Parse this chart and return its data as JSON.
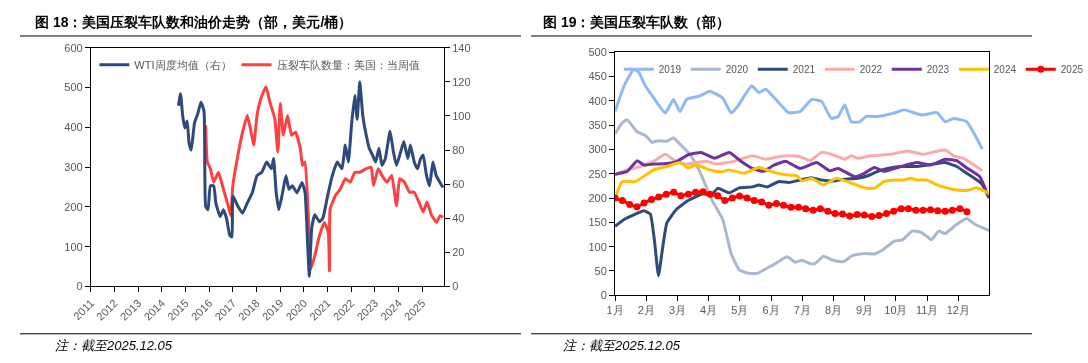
{
  "chart_data": [
    {
      "type": "line",
      "title": "图 18：美国压裂车队数和油价走势（部，美元/桶）",
      "annotations": [
        "注：截至2025.12.05"
      ],
      "xlim": [
        2011,
        2025.92
      ],
      "xticks": [
        2011,
        2012,
        2013,
        2014,
        2015,
        2016,
        2017,
        2018,
        2019,
        2020,
        2021,
        2022,
        2023,
        2024,
        2025
      ],
      "ylim": [
        0,
        600
      ],
      "yticks": [
        0,
        100,
        200,
        300,
        400,
        500,
        600
      ],
      "y2lim": [
        0,
        140
      ],
      "y2ticks": [
        0,
        20,
        40,
        60,
        80,
        100,
        120,
        140
      ],
      "legend": "top",
      "series": [
        {
          "name": "WTI周度均值（右）",
          "color": "#2e4a7a",
          "axis": "y2",
          "x": [
            2014.7,
            2014.79,
            2014.88,
            2014.97,
            2015.07,
            2015.15,
            2015.24,
            2015.38,
            2015.51,
            2015.65,
            2015.78,
            2015.85,
            2015.95,
            2016.05,
            2016.19,
            2016.28,
            2016.46,
            2016.6,
            2016.73,
            2016.87,
            2016.96,
            2017.0,
            2017.21,
            2017.41,
            2017.61,
            2017.82,
            2018.02,
            2018.22,
            2018.43,
            2018.63,
            2018.72,
            2018.83,
            2018.94,
            2019.1,
            2019.24,
            2019.37,
            2019.51,
            2019.71,
            2019.92,
            2020.05,
            2020.16,
            2020.23,
            2020.33,
            2020.46,
            2020.66,
            2020.8,
            2021.0,
            2021.2,
            2021.41,
            2021.61,
            2021.75,
            2021.88,
            2022.02,
            2022.15,
            2022.25,
            2022.36,
            2022.49,
            2022.63,
            2022.76,
            2022.9,
            2023.03,
            2023.17,
            2023.3,
            2023.44,
            2023.64,
            2023.78,
            2023.91,
            2024.05,
            2024.22,
            2024.39,
            2024.5,
            2024.66,
            2024.8,
            2024.93,
            2025.04,
            2025.18,
            2025.31,
            2025.45,
            2025.59,
            2025.75,
            2025.88
          ],
          "values": [
            106,
            113,
            100,
            93,
            97,
            84,
            80,
            96,
            101,
            108,
            103,
            47,
            45,
            59,
            59,
            49,
            41,
            45,
            40,
            30,
            29,
            53,
            47,
            43,
            49,
            55,
            65,
            67,
            73,
            69,
            75,
            55,
            45,
            55,
            65,
            57,
            59,
            55,
            61,
            55,
            24,
            6,
            34,
            42,
            38,
            40,
            53,
            65,
            73,
            69,
            83,
            73,
            96,
            112,
            98,
            120,
            100,
            89,
            81,
            77,
            73,
            81,
            71,
            75,
            91,
            79,
            71,
            77,
            85,
            75,
            83,
            73,
            69,
            75,
            77,
            65,
            59,
            73,
            65,
            61,
            58
          ]
        },
        {
          "name": "压裂车队数量：美国：当周值",
          "color": "#ff4040",
          "x": [
            2015.85,
            2015.92,
            2016.05,
            2016.19,
            2016.39,
            2016.6,
            2016.8,
            2016.91,
            2017.0,
            2017.21,
            2017.41,
            2017.61,
            2017.74,
            2017.88,
            2018.02,
            2018.18,
            2018.4,
            2018.56,
            2018.77,
            2018.9,
            2019.0,
            2019.13,
            2019.31,
            2019.48,
            2019.65,
            2019.85,
            2019.94,
            2020.05,
            2020.2,
            2020.29,
            2020.46,
            2020.66,
            2020.86,
            2021.03,
            2021.08,
            2021.11,
            2021.34,
            2021.54,
            2021.75,
            2021.96,
            2022.15,
            2022.36,
            2022.63,
            2022.84,
            2022.94,
            2023.14,
            2023.3,
            2023.51,
            2023.71,
            2023.91,
            2024.05,
            2024.25,
            2024.46,
            2024.66,
            2024.86,
            2025.04,
            2025.2,
            2025.4,
            2025.61,
            2025.75,
            2025.88
          ],
          "values": [
            405,
            313,
            296,
            262,
            287,
            245,
            203,
            178,
            254,
            329,
            388,
            430,
            397,
            355,
            430,
            472,
            502,
            464,
            422,
            338,
            460,
            380,
            430,
            380,
            388,
            346,
            304,
            313,
            161,
            44,
            77,
            128,
            161,
            136,
            39,
            195,
            229,
            245,
            271,
            262,
            287,
            287,
            296,
            300,
            254,
            296,
            279,
            262,
            279,
            203,
            271,
            262,
            237,
            237,
            212,
            187,
            212,
            178,
            161,
            178,
            174
          ]
        }
      ]
    },
    {
      "type": "line",
      "title": "图 19：美国压裂车队数（部）",
      "annotations": [
        "注：截至2025.12.05"
      ],
      "xlim": [
        1,
        13
      ],
      "xticks": [
        {
          "value": 1,
          "label": "1月"
        },
        {
          "value": 2,
          "label": "2月"
        },
        {
          "value": 3,
          "label": "3月"
        },
        {
          "value": 4,
          "label": "4月"
        },
        {
          "value": 5,
          "label": "5月"
        },
        {
          "value": 6,
          "label": "6月"
        },
        {
          "value": 7,
          "label": "7月"
        },
        {
          "value": 8,
          "label": "8月"
        },
        {
          "value": 9,
          "label": "9月"
        },
        {
          "value": 10,
          "label": "10月"
        },
        {
          "value": 11,
          "label": "11月"
        },
        {
          "value": 12,
          "label": "12月"
        }
      ],
      "ylim": [
        0,
        500
      ],
      "yticks": [
        0,
        50,
        100,
        150,
        200,
        250,
        300,
        350,
        400,
        450,
        500
      ],
      "legend": "top",
      "series": [
        {
          "name": "2019",
          "color": "#8fb9f5",
          "x": [
            1.0,
            1.29,
            1.6,
            1.76,
            1.97,
            2.24,
            2.61,
            2.87,
            3.08,
            3.29,
            3.71,
            4.03,
            4.45,
            4.72,
            4.93,
            5.38,
            5.61,
            5.83,
            6.25,
            6.56,
            6.93,
            7.3,
            7.62,
            7.93,
            8.15,
            8.36,
            8.57,
            8.84,
            9.05,
            9.42,
            9.94,
            10.26,
            10.47,
            10.84,
            11.32,
            11.58,
            11.85,
            12.27,
            12.77
          ],
          "values": [
            378,
            431,
            465,
            459,
            431,
            406,
            375,
            403,
            378,
            403,
            410,
            420,
            406,
            375,
            389,
            431,
            417,
            424,
            396,
            376,
            378,
            403,
            399,
            364,
            368,
            392,
            357,
            357,
            368,
            368,
            375,
            382,
            378,
            371,
            376,
            357,
            364,
            357,
            301
          ]
        },
        {
          "name": "2020",
          "color": "#a9b8cc",
          "x": [
            1.0,
            1.23,
            1.39,
            1.71,
            1.97,
            2.18,
            2.39,
            2.66,
            2.87,
            3.08,
            3.4,
            3.71,
            4.08,
            4.45,
            4.72,
            4.98,
            5.3,
            5.56,
            5.88,
            6.14,
            6.51,
            6.78,
            6.99,
            7.25,
            7.41,
            7.67,
            7.99,
            8.31,
            8.62,
            8.99,
            9.31,
            9.57,
            9.94,
            10.21,
            10.52,
            10.79,
            11.0,
            11.14,
            11.37,
            11.58,
            11.95,
            12.27,
            12.53,
            13.0
          ],
          "values": [
            332,
            355,
            361,
            336,
            329,
            315,
            318,
            317,
            324,
            311,
            290,
            255,
            199,
            156,
            86,
            52,
            45,
            45,
            56,
            65,
            79,
            68,
            72,
            65,
            65,
            80,
            72,
            69,
            82,
            86,
            85,
            93,
            111,
            114,
            132,
            130,
            121,
            114,
            132,
            127,
            146,
            158,
            146,
            133
          ]
        },
        {
          "name": "2021",
          "color": "#2f4b7c",
          "x": [
            1.0,
            1.29,
            1.65,
            1.92,
            2.13,
            2.26,
            2.39,
            2.53,
            2.66,
            2.97,
            3.34,
            3.82,
            4.08,
            4.29,
            4.66,
            4.98,
            5.4,
            5.61,
            5.88,
            6.25,
            6.56,
            6.93,
            7.3,
            7.62,
            7.99,
            8.36,
            8.78,
            9.1,
            9.42,
            9.73,
            10.16,
            10.68,
            11.21,
            11.58,
            11.95,
            12.27,
            12.74,
            12.98
          ],
          "values": [
            142,
            156,
            167,
            174,
            167,
            114,
            40,
            100,
            149,
            177,
            195,
            209,
            206,
            220,
            211,
            221,
            223,
            227,
            223,
            234,
            232,
            237,
            242,
            237,
            235,
            239,
            241,
            246,
            255,
            261,
            265,
            265,
            270,
            273,
            265,
            251,
            230,
            202
          ]
        },
        {
          "name": "2022",
          "color": "#f9aaaa",
          "x": [
            1.0,
            1.39,
            1.81,
            2.24,
            2.61,
            2.92,
            3.29,
            3.92,
            4.24,
            4.77,
            5.4,
            5.83,
            6.25,
            6.56,
            6.93,
            7.25,
            7.62,
            7.93,
            8.36,
            8.57,
            8.78,
            9.2,
            9.83,
            10.37,
            10.89,
            11.21,
            11.58,
            11.85,
            12.16,
            12.77
          ],
          "values": [
            248,
            258,
            265,
            276,
            290,
            277,
            270,
            276,
            270,
            275,
            287,
            280,
            285,
            287,
            285,
            277,
            294,
            290,
            280,
            287,
            282,
            287,
            290,
            297,
            290,
            295,
            299,
            287,
            282,
            256
          ]
        },
        {
          "name": "2023",
          "color": "#7030a0",
          "x": [
            1.0,
            1.39,
            1.71,
            1.92,
            2.24,
            2.66,
            2.97,
            3.34,
            3.76,
            4.19,
            4.66,
            5.09,
            5.4,
            5.77,
            6.04,
            6.46,
            6.93,
            7.46,
            7.88,
            8.15,
            8.68,
            8.99,
            9.31,
            9.62,
            10.16,
            10.68,
            11.11,
            11.58,
            11.95,
            12.27,
            12.69,
            12.98
          ],
          "values": [
            249,
            255,
            277,
            268,
            270,
            271,
            275,
            289,
            294,
            282,
            294,
            273,
            261,
            255,
            266,
            276,
            261,
            273,
            256,
            261,
            244,
            251,
            263,
            255,
            265,
            273,
            268,
            280,
            277,
            262,
            244,
            200
          ]
        },
        {
          "name": "2024",
          "color": "#ffc000",
          "x": [
            1.0,
            1.23,
            1.65,
            2.24,
            2.66,
            3.08,
            3.34,
            3.61,
            4.03,
            4.4,
            4.66,
            5.14,
            5.61,
            6.04,
            6.46,
            6.83,
            6.99,
            7.3,
            7.67,
            8.1,
            8.52,
            9.05,
            9.31,
            9.62,
            10.05,
            10.26,
            10.47,
            10.68,
            11.0,
            11.32,
            11.63,
            12.05,
            12.32,
            12.58,
            13.0
          ],
          "values": [
            200,
            234,
            234,
            258,
            265,
            273,
            262,
            268,
            258,
            254,
            258,
            251,
            263,
            254,
            248,
            246,
            235,
            241,
            227,
            241,
            232,
            220,
            220,
            234,
            237,
            237,
            241,
            237,
            237,
            227,
            221,
            216,
            216,
            221,
            209
          ]
        },
        {
          "name": "2025",
          "color": "#ff0000",
          "marker": "circle",
          "x": [
            1.0,
            1.23,
            1.47,
            1.7,
            1.93,
            2.17,
            2.4,
            2.64,
            2.88,
            3.11,
            3.35,
            3.58,
            3.82,
            4.05,
            4.29,
            4.52,
            4.76,
            4.99,
            5.23,
            5.46,
            5.7,
            5.93,
            6.17,
            6.4,
            6.64,
            6.88,
            7.11,
            7.35,
            7.58,
            7.82,
            8.05,
            8.29,
            8.52,
            8.76,
            8.99,
            9.23,
            9.46,
            9.7,
            9.93,
            10.17,
            10.4,
            10.64,
            10.87,
            11.11,
            11.34,
            11.58,
            11.81,
            12.05,
            12.28
          ],
          "values": [
            200,
            195,
            187,
            182,
            190,
            197,
            202,
            208,
            212,
            205,
            208,
            212,
            213,
            208,
            205,
            195,
            200,
            204,
            200,
            195,
            192,
            185,
            189,
            185,
            181,
            181,
            178,
            175,
            178,
            173,
            168,
            167,
            163,
            166,
            165,
            162,
            164,
            168,
            173,
            178,
            178,
            175,
            175,
            176,
            174,
            173,
            175,
            178,
            172
          ]
        }
      ]
    }
  ]
}
